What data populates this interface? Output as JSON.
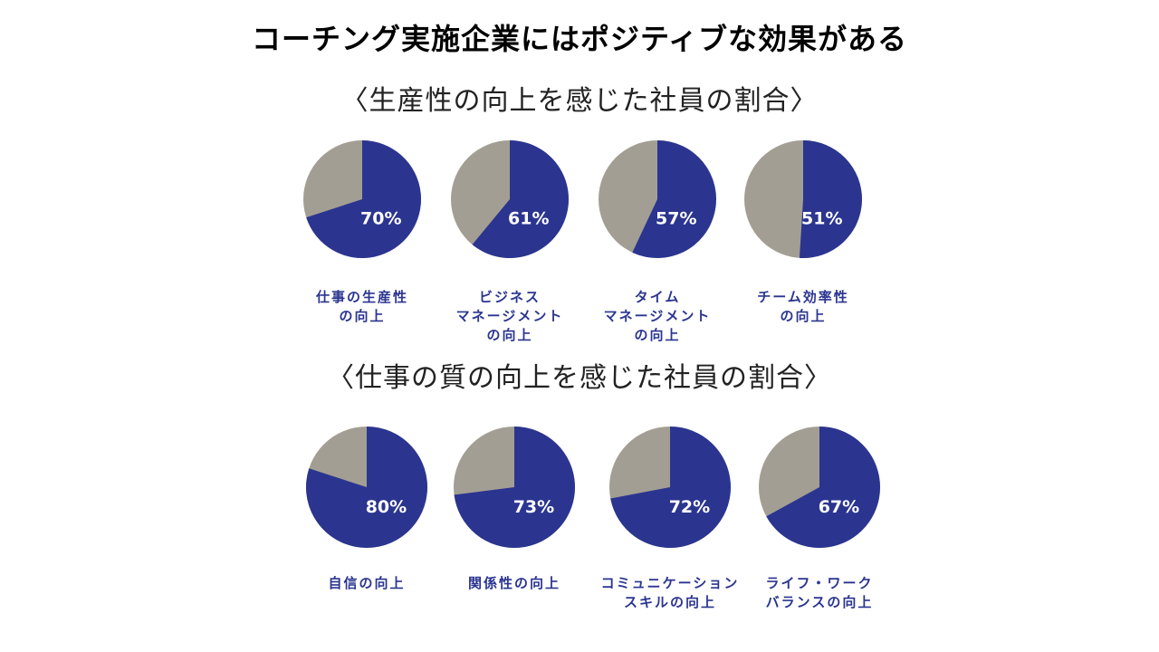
{
  "title": "コーチング実施企業にはポジティブな効果がある",
  "colors": {
    "positive": "#2b3590",
    "remaining": "#a39e93",
    "label": "#2b3590",
    "pct_text": "#ffffff"
  },
  "chart_data": [
    {
      "type": "pie",
      "title": "〈生産性の向上を感じた社員の割合〉",
      "items": [
        {
          "label_lines": [
            "仕事の生産性",
            "の向上"
          ],
          "value": 70,
          "pct_label": "70%"
        },
        {
          "label_lines": [
            "ビジネス",
            "マネージメント",
            "の向上"
          ],
          "value": 61,
          "pct_label": "61%"
        },
        {
          "label_lines": [
            "タイム",
            "マネージメント",
            "の向上"
          ],
          "value": 57,
          "pct_label": "57%"
        },
        {
          "label_lines": [
            "チーム効率性",
            "の向上"
          ],
          "value": 51,
          "pct_label": "51%"
        }
      ]
    },
    {
      "type": "pie",
      "title": "〈仕事の質の向上を感じた社員の割合〉",
      "items": [
        {
          "label_lines": [
            "自信の向上"
          ],
          "value": 80,
          "pct_label": "80%"
        },
        {
          "label_lines": [
            "関係性の向上"
          ],
          "value": 73,
          "pct_label": "73%"
        },
        {
          "label_lines": [
            "コミュニケーション",
            "スキルの向上"
          ],
          "value": 72,
          "pct_label": "72%"
        },
        {
          "label_lines": [
            "ライフ・ワーク",
            "バランスの向上"
          ],
          "value": 67,
          "pct_label": "67%"
        }
      ]
    }
  ]
}
